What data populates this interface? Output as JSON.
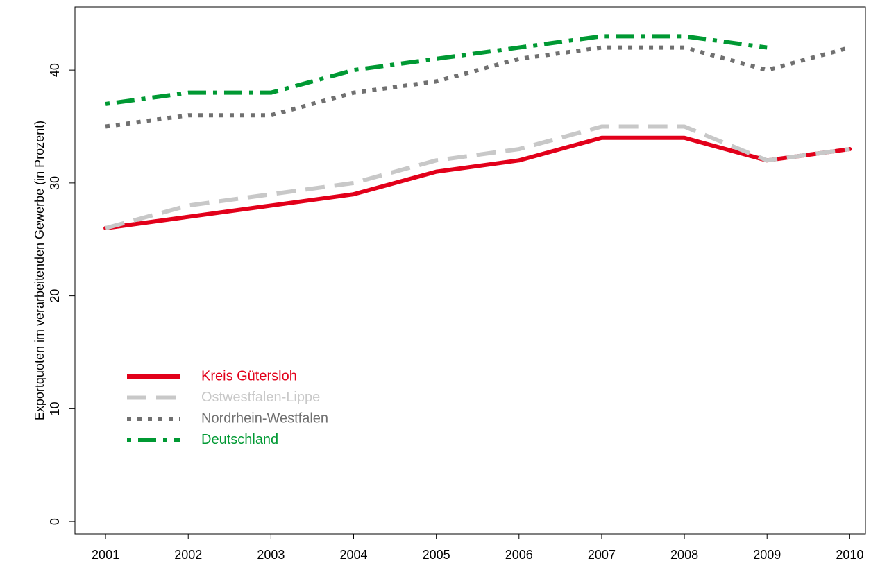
{
  "chart_data": {
    "type": "line",
    "y_label": "Exportquoten im verarbeitenden Gewerbe (in Prozent)",
    "x": [
      2001,
      2002,
      2003,
      2004,
      2005,
      2006,
      2007,
      2008,
      2009,
      2010
    ],
    "xlim": [
      2000.63,
      2010.19
    ],
    "xticks": [
      2001,
      2002,
      2003,
      2004,
      2005,
      2006,
      2007,
      2008,
      2009,
      2010
    ],
    "ylim": [
      -1.1,
      45.6
    ],
    "yticks": [
      0,
      10,
      20,
      30,
      40
    ],
    "legend": "bottom-left",
    "series": [
      {
        "name": "Kreis Gütersloh",
        "color": "#e2001a",
        "linestyle": "solid",
        "values": [
          26,
          27,
          28,
          29,
          31,
          32,
          34,
          34,
          32,
          33
        ]
      },
      {
        "name": "Ostwestfalen-Lippe",
        "color": "#c8c8c8",
        "linestyle": "dashed",
        "values": [
          26,
          28,
          29,
          30,
          32,
          33,
          35,
          35,
          32,
          33
        ]
      },
      {
        "name": "Nordrhein-Westfalen",
        "color": "#707070",
        "linestyle": "dotted",
        "values": [
          35,
          36,
          36,
          38,
          39,
          41,
          42,
          42,
          40,
          42
        ]
      },
      {
        "name": "Deutschland",
        "color": "#009933",
        "linestyle": "dotdash",
        "values": [
          37,
          38,
          38,
          40,
          41,
          42,
          43,
          43,
          42,
          null
        ]
      }
    ]
  }
}
